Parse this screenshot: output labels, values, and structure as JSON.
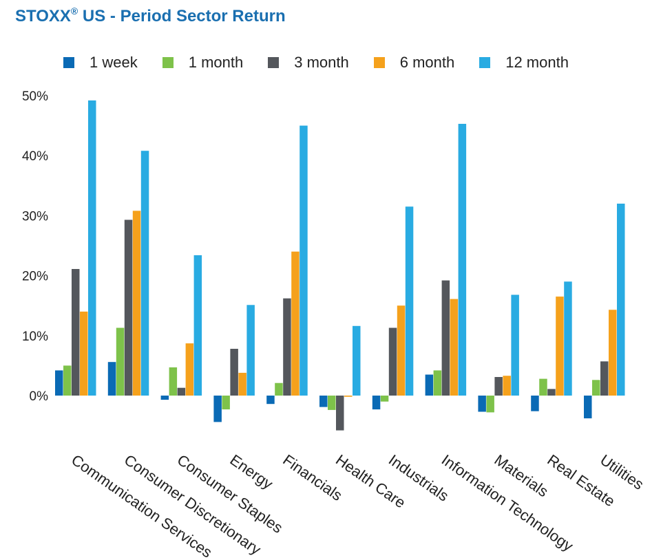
{
  "title_main": "STOXX",
  "title_mark": "®",
  "title_rest": " US - Period Sector Return",
  "colors": {
    "1 week": "#0a6ab5",
    "1 month": "#7ec24a",
    "3 month": "#54575c",
    "6 month": "#f5a11c",
    "12 month": "#29abe2"
  },
  "chart_data": {
    "type": "bar",
    "title": "STOXX® US - Period Sector Return",
    "xlabel": "",
    "ylabel": "",
    "ylim": [
      -8,
      50
    ],
    "yticks": [
      0,
      10,
      20,
      30,
      40,
      50
    ],
    "ytick_labels": [
      "0%",
      "10%",
      "20%",
      "30%",
      "40%",
      "50%"
    ],
    "legend_position": "top",
    "grid": false,
    "categories": [
      "Communication Services",
      "Consumer Discretionary",
      "Consumer Staples",
      "Energy",
      "Financials",
      "Health Care",
      "Industrials",
      "Information Technology",
      "Materials",
      "Real Estate",
      "Utilities"
    ],
    "series": [
      {
        "name": "1 week",
        "values": [
          4.2,
          5.6,
          -0.7,
          -4.4,
          -1.4,
          -1.9,
          -2.3,
          3.5,
          -2.7,
          -2.6,
          -3.8
        ]
      },
      {
        "name": "1 month",
        "values": [
          5.0,
          11.3,
          4.7,
          -2.3,
          2.1,
          -2.4,
          -1.0,
          4.2,
          -2.8,
          2.8,
          2.6
        ]
      },
      {
        "name": "3 month",
        "values": [
          21.1,
          29.3,
          1.3,
          7.8,
          16.2,
          -5.8,
          11.3,
          19.2,
          3.1,
          1.1,
          5.7
        ]
      },
      {
        "name": "6 month",
        "values": [
          14.0,
          30.8,
          8.7,
          3.8,
          24.0,
          -0.2,
          15.0,
          16.1,
          3.3,
          16.5,
          14.3
        ]
      },
      {
        "name": "12 month",
        "values": [
          49.2,
          40.8,
          23.4,
          15.1,
          45.0,
          11.6,
          31.5,
          45.3,
          16.8,
          19.0,
          32.0
        ]
      }
    ]
  }
}
